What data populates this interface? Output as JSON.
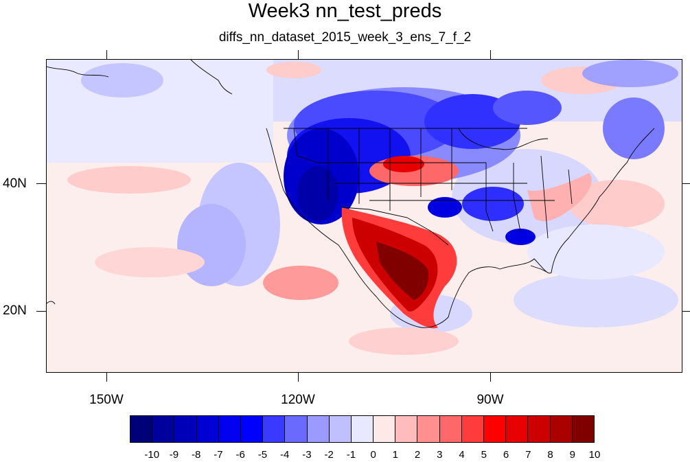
{
  "title": "Week3 nn_test_preds",
  "subtitle": "diffs_nn_dataset_2015_week_3_ens_7_f_2",
  "map": {
    "projection": "cylindrical-equidistant",
    "lon_range": [
      -159.3,
      -60.5
    ],
    "lat_range": [
      10.0,
      59.0
    ],
    "lat_labels": [
      "40N",
      "20N"
    ],
    "lon_labels": [
      "150W",
      "120W",
      "90W"
    ],
    "features": [
      "coastlines",
      "country-borders",
      "us-state-borders",
      "filled-contours"
    ]
  },
  "colorbar": {
    "labels": [
      "-10",
      "-9",
      "-8",
      "-7",
      "-6",
      "-5",
      "-4",
      "-3",
      "-2",
      "-1",
      "0",
      "1",
      "2",
      "3",
      "4",
      "5",
      "6",
      "7",
      "8",
      "9",
      "10"
    ],
    "colors": [
      "#000078",
      "#00009c",
      "#0000b8",
      "#0000d4",
      "#0000ee",
      "#0000ff",
      "#3a3aff",
      "#6a6aff",
      "#9a9aff",
      "#c0c0ff",
      "#e8e8ff",
      "#ffe8e8",
      "#ffbcbc",
      "#ff9090",
      "#ff6868",
      "#ff3c3c",
      "#ff0000",
      "#e80000",
      "#cc0000",
      "#aa0000",
      "#800000"
    ]
  }
}
